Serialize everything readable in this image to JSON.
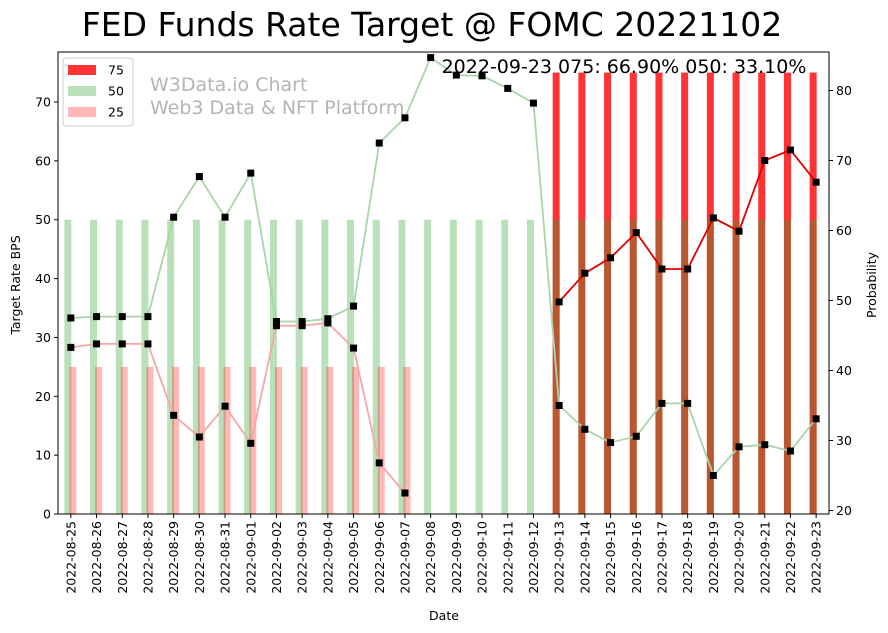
{
  "chart_data": {
    "type": "bar+line",
    "title": "FED Funds Rate Target @ FOMC 20221102",
    "annotation": "2022-09-23 075: 66.90% 050: 33.10%",
    "watermark": [
      "W3Data.io Chart",
      "Web3 Data & NFT Platform"
    ],
    "xlabel": "Date",
    "ylabel_left": "Target Rate BPS",
    "ylabel_right": "Probability",
    "ylim_left": [
      0,
      78.5
    ],
    "ylim_right": [
      19.5,
      85.5
    ],
    "yticks_left": [
      0,
      10,
      20,
      30,
      40,
      50,
      60,
      70
    ],
    "yticks_right": [
      20,
      30,
      40,
      50,
      60,
      70,
      80
    ],
    "legend_position": "top-left",
    "categories": [
      "2022-08-25",
      "2022-08-26",
      "2022-08-27",
      "2022-08-28",
      "2022-08-29",
      "2022-08-30",
      "2022-08-31",
      "2022-09-01",
      "2022-09-02",
      "2022-09-03",
      "2022-09-04",
      "2022-09-05",
      "2022-09-06",
      "2022-09-07",
      "2022-09-08",
      "2022-09-09",
      "2022-09-10",
      "2022-09-11",
      "2022-09-12",
      "2022-09-13",
      "2022-09-14",
      "2022-09-15",
      "2022-09-16",
      "2022-09-17",
      "2022-09-18",
      "2022-09-19",
      "2022-09-20",
      "2022-09-21",
      "2022-09-22",
      "2022-09-23"
    ],
    "bar_series": [
      {
        "name": "75",
        "color": "#ff0000",
        "alpha": 0.8,
        "values": [
          null,
          null,
          null,
          null,
          null,
          null,
          null,
          null,
          null,
          null,
          null,
          null,
          null,
          null,
          null,
          null,
          null,
          null,
          null,
          75,
          75,
          75,
          75,
          75,
          75,
          75,
          75,
          75,
          75,
          75
        ]
      },
      {
        "name": "50",
        "color": "#2ca02c",
        "alpha": 0.33,
        "values": [
          50,
          50,
          50,
          50,
          50,
          50,
          50,
          50,
          50,
          50,
          50,
          50,
          50,
          50,
          50,
          50,
          50,
          50,
          50,
          50,
          50,
          50,
          50,
          50,
          50,
          50,
          50,
          50,
          50,
          50
        ]
      },
      {
        "name": "25",
        "color": "#ff0000",
        "alpha": 0.28,
        "values": [
          25,
          25,
          25,
          25,
          25,
          25,
          25,
          25,
          25,
          25,
          25,
          25,
          25,
          25,
          null,
          null,
          null,
          null,
          null,
          null,
          null,
          null,
          null,
          null,
          null,
          null,
          null,
          null,
          null,
          null
        ]
      }
    ],
    "line_series": [
      {
        "target": "75",
        "color": "#e00000",
        "values": [
          null,
          null,
          null,
          null,
          null,
          null,
          null,
          null,
          null,
          null,
          null,
          null,
          null,
          null,
          null,
          null,
          null,
          null,
          null,
          49.8,
          53.9,
          56.1,
          59.7,
          54.5,
          54.5,
          61.8,
          59.9,
          70.0,
          71.5,
          66.9
        ]
      },
      {
        "target": "50",
        "color": "#aad4aa",
        "values": [
          47.5,
          47.7,
          47.7,
          47.7,
          61.9,
          67.7,
          61.9,
          68.2,
          47.0,
          47.0,
          47.4,
          49.2,
          72.5,
          76.1,
          84.7,
          82.2,
          82.1,
          80.3,
          78.2,
          35.0,
          31.6,
          29.7,
          30.6,
          35.3,
          35.3,
          25.0,
          29.1,
          29.4,
          28.5,
          33.1
        ]
      },
      {
        "target": "25",
        "color": "#f4a7a7",
        "values": [
          43.3,
          43.8,
          43.8,
          43.8,
          33.6,
          30.5,
          34.9,
          29.6,
          46.4,
          46.4,
          46.8,
          43.2,
          26.8,
          22.5,
          null,
          null,
          null,
          null,
          null,
          null,
          null,
          null,
          null,
          null,
          null,
          null,
          null,
          null,
          null,
          null
        ]
      }
    ]
  }
}
